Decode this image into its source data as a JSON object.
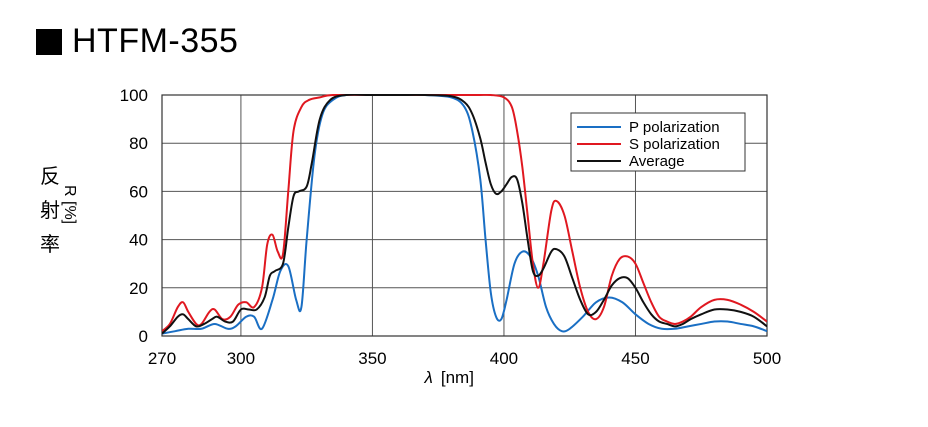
{
  "header": {
    "title": "HTFM-355"
  },
  "side_label": [
    "反",
    "射",
    "率"
  ],
  "chart_data": {
    "type": "line",
    "title": "HTFM-355",
    "xlabel_symbol": "λ",
    "xlabel_unit": "[nm]",
    "ylabel": "R [%]",
    "xlim": [
      270,
      500
    ],
    "ylim": [
      0,
      100
    ],
    "x_ticks": [
      270,
      300,
      350,
      400,
      450,
      500
    ],
    "y_ticks": [
      0,
      20,
      40,
      60,
      80,
      100
    ],
    "grid": true,
    "legend_position": "top-right",
    "series": [
      {
        "name": "P polarization",
        "color": "#1a6fc4",
        "points": [
          [
            270,
            1
          ],
          [
            275,
            2
          ],
          [
            280,
            3
          ],
          [
            285,
            3
          ],
          [
            290,
            5
          ],
          [
            295,
            3
          ],
          [
            298,
            4
          ],
          [
            302,
            8
          ],
          [
            305,
            8
          ],
          [
            308,
            3
          ],
          [
            312,
            15
          ],
          [
            315,
            27
          ],
          [
            318,
            29
          ],
          [
            321,
            15
          ],
          [
            323,
            12
          ],
          [
            325,
            40
          ],
          [
            328,
            75
          ],
          [
            331,
            92
          ],
          [
            335,
            98
          ],
          [
            340,
            100
          ],
          [
            350,
            100
          ],
          [
            360,
            100
          ],
          [
            370,
            100
          ],
          [
            380,
            99
          ],
          [
            385,
            95
          ],
          [
            388,
            85
          ],
          [
            391,
            65
          ],
          [
            393,
            40
          ],
          [
            395,
            18
          ],
          [
            397,
            8
          ],
          [
            399,
            7
          ],
          [
            401,
            15
          ],
          [
            404,
            30
          ],
          [
            407,
            35
          ],
          [
            410,
            33
          ],
          [
            413,
            25
          ],
          [
            416,
            12
          ],
          [
            419,
            5
          ],
          [
            422,
            2
          ],
          [
            425,
            3
          ],
          [
            430,
            8
          ],
          [
            435,
            14
          ],
          [
            440,
            16
          ],
          [
            445,
            14
          ],
          [
            450,
            9
          ],
          [
            455,
            5
          ],
          [
            460,
            3
          ],
          [
            465,
            3
          ],
          [
            470,
            4
          ],
          [
            475,
            5
          ],
          [
            480,
            6
          ],
          [
            485,
            6
          ],
          [
            490,
            5
          ],
          [
            495,
            4
          ],
          [
            500,
            2
          ]
        ]
      },
      {
        "name": "S polarization",
        "color": "#e01820",
        "points": [
          [
            270,
            2
          ],
          [
            273,
            5
          ],
          [
            276,
            12
          ],
          [
            278,
            14
          ],
          [
            280,
            10
          ],
          [
            283,
            5
          ],
          [
            285,
            5
          ],
          [
            288,
            10
          ],
          [
            290,
            11
          ],
          [
            293,
            7
          ],
          [
            296,
            8
          ],
          [
            299,
            13
          ],
          [
            302,
            14
          ],
          [
            305,
            12
          ],
          [
            308,
            20
          ],
          [
            310,
            38
          ],
          [
            312,
            42
          ],
          [
            314,
            35
          ],
          [
            316,
            34
          ],
          [
            318,
            60
          ],
          [
            320,
            85
          ],
          [
            323,
            95
          ],
          [
            326,
            98
          ],
          [
            330,
            99
          ],
          [
            335,
            100
          ],
          [
            350,
            100
          ],
          [
            360,
            100
          ],
          [
            370,
            100
          ],
          [
            380,
            100
          ],
          [
            390,
            100
          ],
          [
            395,
            100
          ],
          [
            400,
            99
          ],
          [
            403,
            95
          ],
          [
            405,
            85
          ],
          [
            407,
            70
          ],
          [
            409,
            50
          ],
          [
            411,
            30
          ],
          [
            413,
            20
          ],
          [
            415,
            30
          ],
          [
            418,
            52
          ],
          [
            420,
            56
          ],
          [
            423,
            50
          ],
          [
            426,
            35
          ],
          [
            429,
            20
          ],
          [
            432,
            10
          ],
          [
            435,
            7
          ],
          [
            438,
            12
          ],
          [
            441,
            25
          ],
          [
            444,
            32
          ],
          [
            447,
            33
          ],
          [
            450,
            30
          ],
          [
            453,
            22
          ],
          [
            456,
            14
          ],
          [
            459,
            8
          ],
          [
            462,
            6
          ],
          [
            465,
            5
          ],
          [
            468,
            6
          ],
          [
            471,
            8
          ],
          [
            475,
            12
          ],
          [
            480,
            15
          ],
          [
            485,
            15
          ],
          [
            490,
            13
          ],
          [
            495,
            10
          ],
          [
            500,
            6
          ]
        ]
      },
      {
        "name": "Average",
        "color": "#111111",
        "points": [
          [
            270,
            1
          ],
          [
            273,
            4
          ],
          [
            276,
            8
          ],
          [
            278,
            9
          ],
          [
            280,
            7
          ],
          [
            283,
            4
          ],
          [
            286,
            5
          ],
          [
            289,
            7
          ],
          [
            291,
            8
          ],
          [
            294,
            6
          ],
          [
            297,
            6
          ],
          [
            300,
            11
          ],
          [
            303,
            11
          ],
          [
            306,
            11
          ],
          [
            309,
            16
          ],
          [
            311,
            25
          ],
          [
            313,
            27
          ],
          [
            316,
            30
          ],
          [
            318,
            45
          ],
          [
            320,
            58
          ],
          [
            322,
            60
          ],
          [
            325,
            62
          ],
          [
            327,
            72
          ],
          [
            330,
            90
          ],
          [
            334,
            98
          ],
          [
            340,
            100
          ],
          [
            350,
            100
          ],
          [
            360,
            100
          ],
          [
            370,
            100
          ],
          [
            380,
            99.5
          ],
          [
            385,
            97
          ],
          [
            388,
            92
          ],
          [
            391,
            82
          ],
          [
            393,
            72
          ],
          [
            395,
            63
          ],
          [
            397,
            59
          ],
          [
            399,
            60
          ],
          [
            401,
            63
          ],
          [
            403,
            66
          ],
          [
            405,
            65
          ],
          [
            407,
            55
          ],
          [
            409,
            40
          ],
          [
            411,
            27
          ],
          [
            413,
            25
          ],
          [
            415,
            28
          ],
          [
            418,
            35
          ],
          [
            420,
            36
          ],
          [
            423,
            33
          ],
          [
            426,
            24
          ],
          [
            429,
            15
          ],
          [
            432,
            9
          ],
          [
            435,
            10
          ],
          [
            438,
            15
          ],
          [
            441,
            21
          ],
          [
            444,
            24
          ],
          [
            447,
            24
          ],
          [
            450,
            20
          ],
          [
            453,
            14
          ],
          [
            456,
            9
          ],
          [
            459,
            6
          ],
          [
            462,
            5
          ],
          [
            465,
            4
          ],
          [
            468,
            5
          ],
          [
            471,
            7
          ],
          [
            475,
            9
          ],
          [
            480,
            11
          ],
          [
            485,
            11
          ],
          [
            490,
            10
          ],
          [
            495,
            8
          ],
          [
            500,
            4
          ]
        ]
      }
    ]
  }
}
